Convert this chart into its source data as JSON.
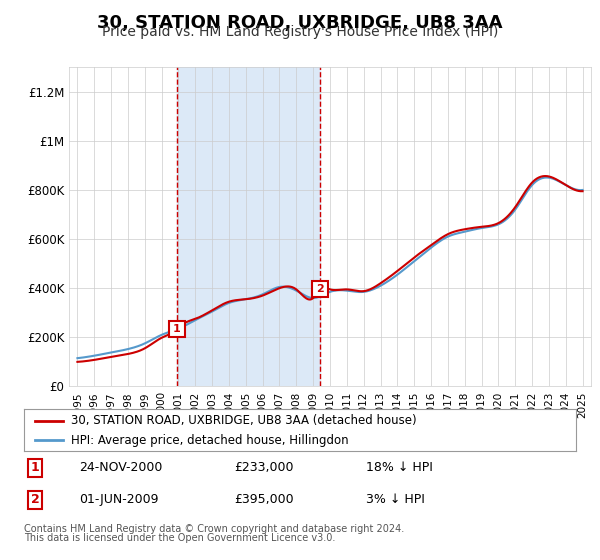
{
  "title": "30, STATION ROAD, UXBRIDGE, UB8 3AA",
  "subtitle": "Price paid vs. HM Land Registry's House Price Index (HPI)",
  "title_fontsize": 13,
  "subtitle_fontsize": 10,
  "ylabel_ticks": [
    "£0",
    "£200K",
    "£400K",
    "£600K",
    "£800K",
    "£1M",
    "£1.2M"
  ],
  "ytick_vals": [
    0,
    200000,
    400000,
    600000,
    800000,
    1000000,
    1200000
  ],
  "ylim": [
    0,
    1300000
  ],
  "xlim_start": 1994.5,
  "xlim_end": 2025.5,
  "sale1_x": 2000.9,
  "sale1_y": 233000,
  "sale1_label": "1",
  "sale2_x": 2009.4,
  "sale2_y": 395000,
  "sale2_label": "2",
  "vline1_x": 2000.9,
  "vline2_x": 2009.4,
  "shade_color": "#dce9f7",
  "red_line_color": "#cc0000",
  "blue_line_color": "#5599cc",
  "marker_box_color": "#cc0000",
  "legend_entries": [
    "30, STATION ROAD, UXBRIDGE, UB8 3AA (detached house)",
    "HPI: Average price, detached house, Hillingdon"
  ],
  "table_rows": [
    {
      "num": "1",
      "date": "24-NOV-2000",
      "price": "£233,000",
      "hpi": "18% ↓ HPI"
    },
    {
      "num": "2",
      "date": "01-JUN-2009",
      "price": "£395,000",
      "hpi": "3% ↓ HPI"
    }
  ],
  "footnote1": "Contains HM Land Registry data © Crown copyright and database right 2024.",
  "footnote2": "This data is licensed under the Open Government Licence v3.0.",
  "background_color": "#ffffff",
  "plot_bg_color": "#ffffff"
}
